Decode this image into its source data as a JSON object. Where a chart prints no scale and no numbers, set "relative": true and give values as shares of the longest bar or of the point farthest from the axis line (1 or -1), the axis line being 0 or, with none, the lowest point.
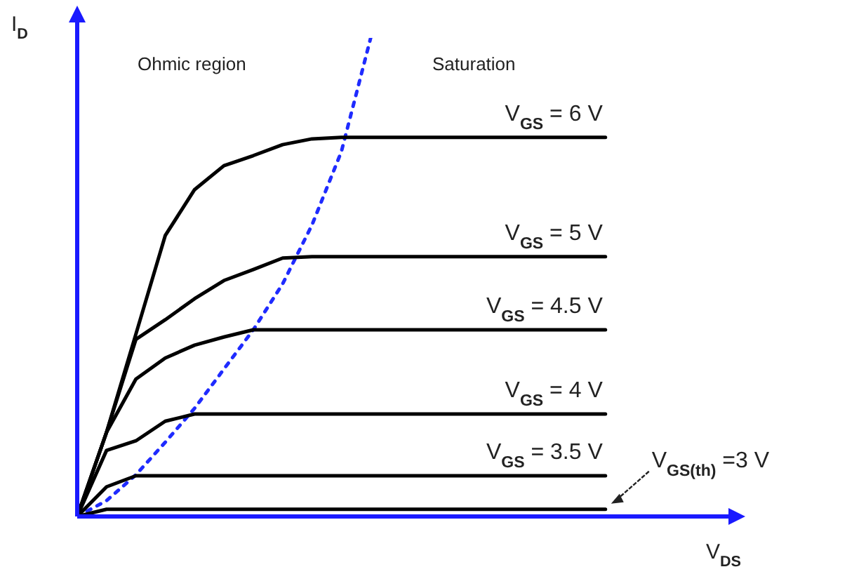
{
  "chart_data": {
    "type": "line",
    "relative": true,
    "marker": "none",
    "legend": false,
    "xlabel": "V$_{DS}$",
    "ylabel": "I$_{D}$",
    "annotations": [
      "Ohmic region",
      "Saturation"
    ],
    "categories": [
      null,
      null,
      null,
      null,
      null,
      null,
      null,
      null,
      null,
      null,
      null,
      null,
      null,
      null,
      null,
      null,
      null,
      null,
      null,
      null,
      null,
      null,
      null
    ],
    "series": [
      {
        "name": "V$_{GS}$ = 6 V",
        "color": "#000000",
        "values": [
          0,
          0.176,
          0.381,
          0.587,
          0.683,
          0.733,
          0.754,
          0.777,
          0.789,
          0.792,
          0.792,
          0.792,
          0.792,
          0.792,
          0.792,
          0.792,
          0.792,
          0.792,
          0.792,
          null,
          null,
          null,
          null
        ]
      },
      {
        "name": "V$_{GS}$ = 5 V",
        "color": "#000000",
        "values": [
          0,
          0.176,
          0.37,
          0.411,
          0.455,
          0.493,
          0.516,
          0.54,
          0.543,
          0.543,
          0.543,
          0.543,
          0.543,
          0.543,
          0.543,
          0.543,
          0.543,
          0.543,
          0.543,
          null,
          null,
          null,
          null
        ]
      },
      {
        "name": "V$_{GS}$ = 4.5 V",
        "color": "#000000",
        "values": [
          0,
          0.176,
          0.287,
          0.331,
          0.358,
          0.375,
          0.39,
          0.39,
          0.39,
          0.39,
          0.39,
          0.39,
          0.39,
          0.39,
          0.39,
          0.39,
          0.39,
          0.39,
          0.39,
          null,
          null,
          null,
          null
        ]
      },
      {
        "name": "V$_{GS}$ = 4 V",
        "color": "#000000",
        "values": [
          0,
          0.138,
          0.158,
          0.199,
          0.214,
          0.214,
          0.214,
          0.214,
          0.214,
          0.214,
          0.214,
          0.214,
          0.214,
          0.214,
          0.214,
          0.214,
          0.214,
          0.214,
          0.214,
          null,
          null,
          null,
          null
        ]
      },
      {
        "name": "V$_{GS}$ = 3.5 V",
        "color": "#000000",
        "values": [
          0,
          0.062,
          0.085,
          0.085,
          0.085,
          0.085,
          0.085,
          0.085,
          0.085,
          0.085,
          0.085,
          0.085,
          0.085,
          0.085,
          0.085,
          0.085,
          0.085,
          0.085,
          0.085,
          null,
          null,
          null,
          null
        ]
      },
      {
        "name": "V$_{GS(th)}$ =3 V",
        "color": "#000000",
        "values": [
          0,
          0.015,
          0.015,
          0.015,
          0.015,
          0.015,
          0.015,
          0.015,
          0.015,
          0.015,
          0.015,
          0.015,
          0.015,
          0.015,
          0.015,
          0.015,
          0.015,
          0.015,
          0.015,
          null,
          null,
          null,
          null
        ]
      },
      {
        "color": "#1f2bff",
        "line_style": "dotted",
        "values": [
          0,
          0.033,
          0.087,
          0.155,
          0.226,
          0.308,
          0.39,
          0.486,
          0.609,
          0.762,
          1,
          null,
          null,
          null,
          null,
          null,
          null,
          null,
          null,
          null,
          null,
          null,
          null
        ]
      }
    ]
  }
}
